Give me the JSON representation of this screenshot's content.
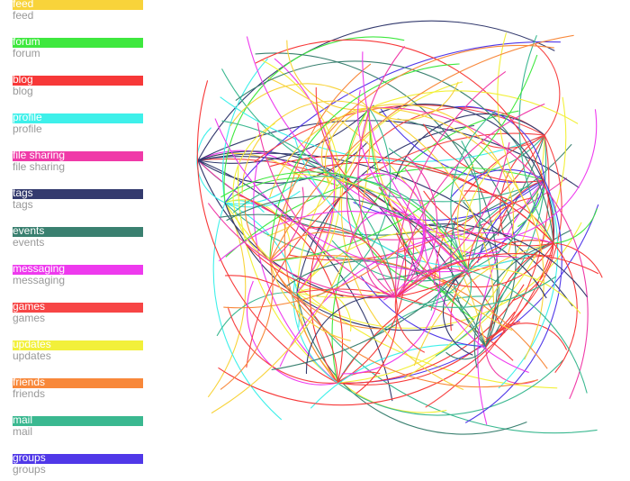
{
  "legend": [
    {
      "label": "feed",
      "color": "#f8d33a"
    },
    {
      "label": "forum",
      "color": "#3ee83e"
    },
    {
      "label": "blog",
      "color": "#f73838"
    },
    {
      "label": "profile",
      "color": "#3ef0ea"
    },
    {
      "label": "file sharing",
      "color": "#f03aa8"
    },
    {
      "label": "tags",
      "color": "#333a6e"
    },
    {
      "label": "events",
      "color": "#3a8070"
    },
    {
      "label": "messaging",
      "color": "#ee3aee"
    },
    {
      "label": "games",
      "color": "#f74545"
    },
    {
      "label": "updates",
      "color": "#f2f03a"
    },
    {
      "label": "friends",
      "color": "#f8883a"
    },
    {
      "label": "mail",
      "color": "#3ab890"
    },
    {
      "label": "groups",
      "color": "#5038e8"
    }
  ]
}
